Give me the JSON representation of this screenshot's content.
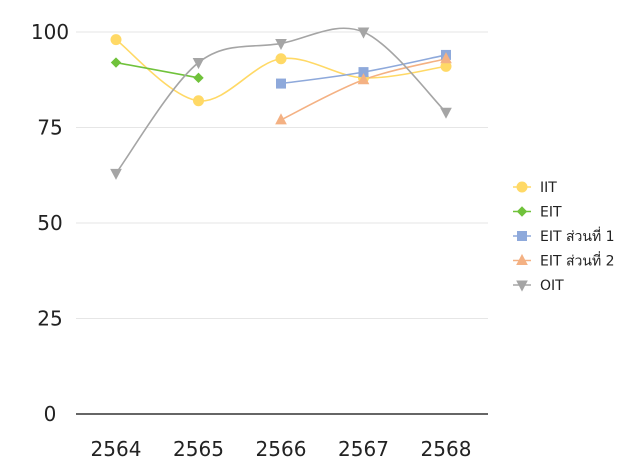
{
  "chart_data": {
    "type": "line",
    "categories": [
      "2564",
      "2565",
      "2566",
      "2567",
      "2568"
    ],
    "ylim": [
      0,
      100
    ],
    "yticks": [
      "0",
      "25",
      "50",
      "75",
      "100"
    ],
    "grid": true,
    "legend_position": "right",
    "series": [
      {
        "name": "IIT",
        "color": "#ffd966",
        "marker": "circle",
        "values": [
          98,
          82,
          93,
          88,
          91
        ]
      },
      {
        "name": "EIT",
        "color": "#70c23b",
        "marker": "diamond",
        "values": [
          92,
          88,
          null,
          null,
          null
        ]
      },
      {
        "name": "EIT ส่วนที่ 1",
        "color": "#8ea9db",
        "marker": "square",
        "values": [
          null,
          null,
          86.5,
          89.5,
          94
        ]
      },
      {
        "name": "EIT ส่วนที่ 2",
        "color": "#f4b183",
        "marker": "triangle",
        "values": [
          null,
          null,
          77,
          87.5,
          93
        ]
      },
      {
        "name": "OIT",
        "color": "#a5a5a5",
        "marker": "triangle-down",
        "values": [
          63,
          92,
          97,
          100,
          79
        ]
      }
    ]
  }
}
